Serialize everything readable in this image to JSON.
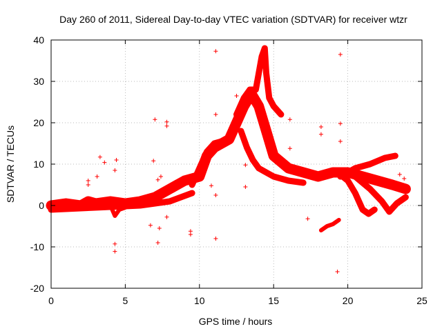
{
  "chart_data": {
    "type": "scatter",
    "title": "Day 260 of 2011, Sidereal Day-to-day VTEC variation (SDTVAR) for receiver wtzr",
    "xlabel": "GPS time / hours",
    "ylabel": "SDTVAR / TECUs",
    "xlim": [
      0,
      25
    ],
    "ylim": [
      -20,
      40
    ],
    "x_ticks": [
      0,
      5,
      10,
      15,
      20,
      25
    ],
    "y_ticks": [
      -20,
      -10,
      0,
      10,
      20,
      30,
      40
    ],
    "grid": true,
    "marker": "+",
    "series_color": "#ff0000",
    "bands": [
      {
        "name": "main-trace",
        "points": [
          [
            0,
            0
          ],
          [
            1,
            0.5
          ],
          [
            2,
            0
          ],
          [
            2.5,
            1
          ],
          [
            3,
            0.5
          ],
          [
            4,
            1
          ],
          [
            5,
            0.5
          ],
          [
            6,
            1
          ],
          [
            7,
            2
          ],
          [
            8,
            4
          ],
          [
            9,
            6
          ],
          [
            10,
            7
          ],
          [
            10.5,
            12
          ],
          [
            11,
            14
          ],
          [
            12,
            16
          ],
          [
            12.5,
            20
          ],
          [
            13,
            24
          ],
          [
            13.5,
            27
          ],
          [
            14,
            24
          ],
          [
            14.5,
            18
          ],
          [
            15,
            12
          ],
          [
            16,
            9
          ],
          [
            17,
            8
          ],
          [
            18,
            7
          ],
          [
            19,
            8
          ],
          [
            20,
            8
          ],
          [
            21,
            7
          ],
          [
            22,
            6
          ],
          [
            23,
            5
          ],
          [
            23.9,
            4
          ]
        ],
        "width": 2.5
      },
      {
        "name": "upper-arc",
        "points": [
          [
            9.5,
            5
          ],
          [
            10,
            9
          ],
          [
            10.5,
            13
          ],
          [
            11,
            15
          ],
          [
            11.5,
            15.5
          ],
          [
            12,
            16
          ]
        ],
        "width": 1.5
      },
      {
        "name": "spike-trace",
        "points": [
          [
            12.5,
            22
          ],
          [
            13,
            26
          ],
          [
            13.4,
            28
          ],
          [
            13.8,
            28
          ],
          [
            14.2,
            36
          ],
          [
            14.4,
            38
          ],
          [
            14.5,
            32
          ],
          [
            14.7,
            26
          ],
          [
            15,
            24
          ],
          [
            15.5,
            22
          ]
        ],
        "width": 1.5
      },
      {
        "name": "descending-trace",
        "points": [
          [
            12.8,
            18
          ],
          [
            13.2,
            14
          ],
          [
            13.6,
            11
          ],
          [
            14,
            9
          ],
          [
            15,
            7
          ],
          [
            16,
            6
          ],
          [
            17,
            5.5
          ]
        ],
        "width": 1.5
      },
      {
        "name": "late-arc-1",
        "points": [
          [
            19.3,
            8
          ],
          [
            20,
            6
          ],
          [
            20.5,
            3
          ],
          [
            21,
            -1
          ],
          [
            21.4,
            -2
          ],
          [
            21.8,
            -1
          ]
        ],
        "width": 1.5
      },
      {
        "name": "late-arc-2",
        "points": [
          [
            20.5,
            7
          ],
          [
            21.5,
            4
          ],
          [
            22.3,
            1
          ],
          [
            22.8,
            -1.5
          ],
          [
            23.3,
            0.5
          ],
          [
            23.9,
            2
          ]
        ],
        "width": 1.5
      },
      {
        "name": "late-rising",
        "points": [
          [
            19.5,
            7
          ],
          [
            20.5,
            9
          ],
          [
            21.5,
            10
          ],
          [
            22.5,
            11.5
          ],
          [
            23.2,
            12
          ]
        ],
        "width": 1.5
      },
      {
        "name": "dip-cluster",
        "points": [
          [
            18.2,
            -6
          ],
          [
            18.6,
            -5
          ],
          [
            19,
            -4.5
          ],
          [
            19.4,
            -3.5
          ]
        ],
        "width": 1.0
      },
      {
        "name": "mid-dip",
        "points": [
          [
            4,
            0
          ],
          [
            4.3,
            -2.5
          ],
          [
            4.6,
            -1
          ],
          [
            5,
            -0.5
          ]
        ],
        "width": 1.0
      },
      {
        "name": "zero-band",
        "points": [
          [
            0,
            -1
          ],
          [
            3,
            -0.5
          ],
          [
            6,
            0
          ],
          [
            8,
            1
          ],
          [
            9.5,
            3
          ]
        ],
        "width": 1.5
      }
    ],
    "outliers": [
      [
        11.1,
        37.3
      ],
      [
        19.5,
        36.5
      ],
      [
        12.5,
        26.5
      ],
      [
        11.1,
        22
      ],
      [
        19.5,
        19.8
      ],
      [
        16.1,
        20.8
      ],
      [
        7,
        20.8
      ],
      [
        7.8,
        20.2
      ],
      [
        7.8,
        19.2
      ],
      [
        18.2,
        19
      ],
      [
        18.2,
        17.2
      ],
      [
        19.5,
        15.5
      ],
      [
        16.1,
        13.8
      ],
      [
        3.3,
        11.7
      ],
      [
        3.6,
        10.4
      ],
      [
        4.4,
        11
      ],
      [
        6.9,
        10.8
      ],
      [
        13.1,
        9.8
      ],
      [
        13.1,
        4.5
      ],
      [
        10.8,
        4.8
      ],
      [
        11.1,
        2.5
      ],
      [
        7.4,
        7
      ],
      [
        7.2,
        6.2
      ],
      [
        2.5,
        6
      ],
      [
        2.5,
        5
      ],
      [
        3.1,
        7
      ],
      [
        4.3,
        8.5
      ],
      [
        9.4,
        -6.2
      ],
      [
        9.4,
        -7
      ],
      [
        11.1,
        -8
      ],
      [
        4.3,
        -9.3
      ],
      [
        4.3,
        -11.1
      ],
      [
        7.2,
        -9
      ],
      [
        7.3,
        -5.5
      ],
      [
        6.7,
        -4.8
      ],
      [
        7.8,
        -2.8
      ],
      [
        19.3,
        -16
      ],
      [
        17.3,
        -3.2
      ],
      [
        23.5,
        7.5
      ],
      [
        23.8,
        6.5
      ]
    ]
  }
}
